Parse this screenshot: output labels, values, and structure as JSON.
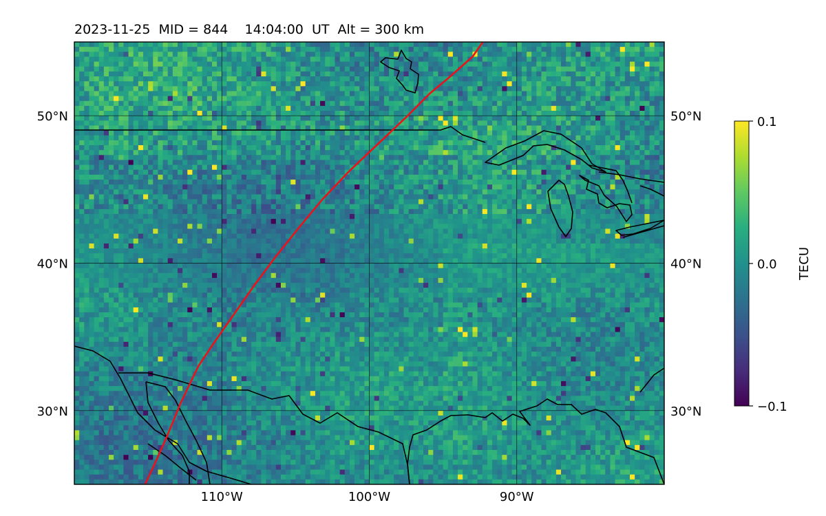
{
  "title": "2023-11-25  MID = 844    14:04:00  UT  Alt = 300 km",
  "map": {
    "lon_range": [
      -120,
      -80
    ],
    "lat_range": [
      25,
      55
    ],
    "gridlines": true,
    "lat_ticks": [
      {
        "value": 50,
        "label": "50°N"
      },
      {
        "value": 40,
        "label": "40°N"
      },
      {
        "value": 30,
        "label": "30°N"
      }
    ],
    "lon_ticks": [
      {
        "value": -110,
        "label": "110°W"
      },
      {
        "value": -100,
        "label": "100°W"
      },
      {
        "value": -90,
        "label": "90°W"
      }
    ],
    "field_colormap": "viridis",
    "track_color": "#e8141b",
    "track_points": [
      [
        -115.2,
        25
      ],
      [
        -114.5,
        26.5
      ],
      [
        -113.7,
        28.3
      ],
      [
        -112.8,
        30.5
      ],
      [
        -111.6,
        33
      ],
      [
        -110.6,
        34.5
      ],
      [
        -109.2,
        36.5
      ],
      [
        -107.8,
        38.5
      ],
      [
        -106.3,
        40.5
      ],
      [
        -104.7,
        42.5
      ],
      [
        -103.2,
        44.3
      ],
      [
        -101.4,
        46.2
      ],
      [
        -99.5,
        48
      ],
      [
        -97.5,
        49.9
      ],
      [
        -95.9,
        51.5
      ],
      [
        -94.7,
        52.5
      ],
      [
        -93,
        54
      ],
      [
        -92.3,
        55
      ]
    ]
  },
  "colorbar": {
    "label": "TECU",
    "min": -0.1,
    "max": 0.1,
    "ticks": [
      {
        "value": 0.1,
        "label": "0.1"
      },
      {
        "value": 0.0,
        "label": "0.0"
      },
      {
        "value": -0.1,
        "label": "−0.1"
      }
    ]
  }
}
